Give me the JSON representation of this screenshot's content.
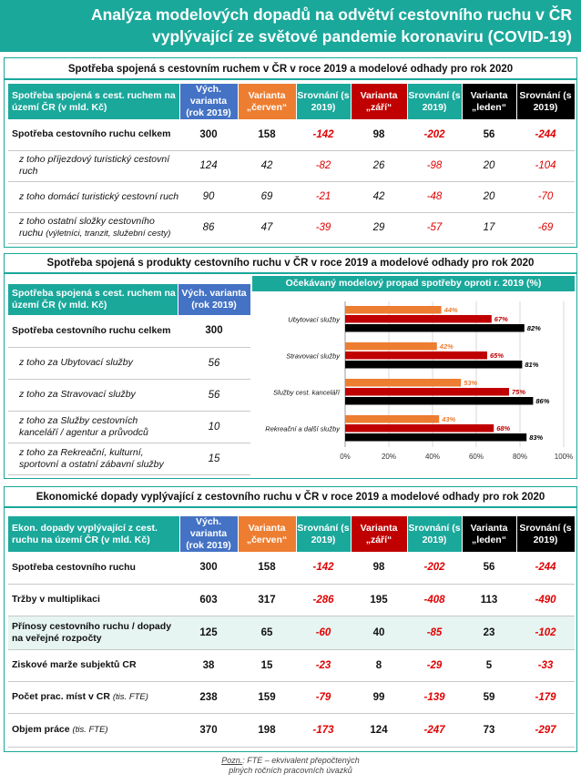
{
  "title": {
    "line1": "Analýza modelových dopadů na odvětví cestovního ruchu v ČR",
    "line2": "vyplývající ze světové pandemie koronaviru (COVID-19)"
  },
  "headers": {
    "col_base": "Vých. varianta (rok 2019)",
    "col_cerven": "Varianta „červen“",
    "col_zari": "Varianta „září“",
    "col_leden": "Varianta „leden“",
    "col_compare": "Srovnání (s 2019)"
  },
  "section1": {
    "title": "Spotřeba spojená s cestovním ruchem v ČR v roce 2019 a modelové odhady pro rok 2020",
    "row_header": "Spotřeba spojená s cest. ruchem na území ČR (v mld. Kč)",
    "rows": [
      {
        "label": "Spotřeba cestovního ruchu celkem",
        "base": "300",
        "cerven": "158",
        "cerven_cmp": "-142",
        "zari": "98",
        "zari_cmp": "-202",
        "leden": "56",
        "leden_cmp": "-244"
      },
      {
        "label": "z toho příjezdový turistický cestovní ruch",
        "base": "124",
        "cerven": "42",
        "cerven_cmp": "-82",
        "zari": "26",
        "zari_cmp": "-98",
        "leden": "20",
        "leden_cmp": "-104"
      },
      {
        "label": "z toho domácí turistický cestovní ruch",
        "base": "90",
        "cerven": "69",
        "cerven_cmp": "-21",
        "zari": "42",
        "zari_cmp": "-48",
        "leden": "20",
        "leden_cmp": "-70"
      },
      {
        "label": "z toho ostatní složky cestovního ruchu",
        "note": "(výletníci, tranzit, služební cesty)",
        "base": "86",
        "cerven": "47",
        "cerven_cmp": "-39",
        "zari": "29",
        "zari_cmp": "-57",
        "leden": "17",
        "leden_cmp": "-69"
      }
    ]
  },
  "section2": {
    "title": "Spotřeba spojená s produkty cestovního ruchu v ČR v roce 2019 a modelové odhady pro rok 2020",
    "row_header": "Spotřeba spojená s cest. ruchem na území ČR (v mld. Kč)",
    "col_base": "Vých. varianta (rok 2019)",
    "rows": [
      {
        "label": "Spotřeba cestovního ruchu celkem",
        "base": "300"
      },
      {
        "label": "z toho za Ubytovací služby",
        "base": "56"
      },
      {
        "label": "z toho za Stravovací služby",
        "base": "56"
      },
      {
        "label": "z toho za Služby cestovních kanceláří / agentur a průvodců",
        "base": "10"
      },
      {
        "label": "z toho za Rekreační, kulturní, sportovní a ostatní zábavní služby",
        "base": "15"
      }
    ]
  },
  "chart_data": {
    "type": "bar",
    "orientation": "horizontal",
    "title": "Očekávaný modelový propad spotřeby oproti r. 2019 (%)",
    "categories": [
      "Ubytovací služby",
      "Stravovací služby",
      "Služby cest. kanceláří",
      "Rekreační a další služby"
    ],
    "series": [
      {
        "name": "Varianta \"červen\"",
        "values": [
          44,
          42,
          53,
          43
        ],
        "color": "#ed7d31",
        "label_color": "#ed7d31"
      },
      {
        "name": "Varianta \"září\"",
        "values": [
          67,
          65,
          75,
          68
        ],
        "color": "#c00000",
        "label_color": "#c00000"
      },
      {
        "name": "Varianta \"leden\"",
        "values": [
          82,
          81,
          86,
          83
        ],
        "color": "#000000",
        "label_color": "#000000"
      }
    ],
    "value_suffix": "%",
    "xlim": [
      0,
      100
    ],
    "xticks": [
      "0%",
      "20%",
      "40%",
      "60%",
      "80%",
      "100%"
    ],
    "grid": true,
    "legend": "bottom"
  },
  "section3": {
    "title": "Ekonomické dopady vyplývající z cestovního ruchu v ČR v roce 2019 a modelové odhady pro rok 2020",
    "row_header": "Ekon. dopady vyplývající z cest. ruchu na území ČR (v mld. Kč)",
    "rows": [
      {
        "label": "Spotřeba cestovního ruchu",
        "base": "300",
        "cerven": "158",
        "cerven_cmp": "-142",
        "zari": "98",
        "zari_cmp": "-202",
        "leden": "56",
        "leden_cmp": "-244"
      },
      {
        "label": "Tržby v multiplikaci",
        "base": "603",
        "cerven": "317",
        "cerven_cmp": "-286",
        "zari": "195",
        "zari_cmp": "-408",
        "leden": "113",
        "leden_cmp": "-490"
      },
      {
        "label": "Přínosy cestovního ruchu / dopady na veřejné rozpočty",
        "base": "125",
        "cerven": "65",
        "cerven_cmp": "-60",
        "zari": "40",
        "zari_cmp": "-85",
        "leden": "23",
        "leden_cmp": "-102"
      },
      {
        "label": "Ziskové marže subjektů CR",
        "base": "38",
        "cerven": "15",
        "cerven_cmp": "-23",
        "zari": "8",
        "zari_cmp": "-29",
        "leden": "5",
        "leden_cmp": "-33"
      },
      {
        "label": "Počet prac. míst v CR",
        "note": "(tis. FTE)",
        "base": "238",
        "cerven": "159",
        "cerven_cmp": "-79",
        "zari": "99",
        "zari_cmp": "-139",
        "leden": "59",
        "leden_cmp": "-179"
      },
      {
        "label": "Objem práce",
        "note": "(tis. FTE)",
        "base": "370",
        "cerven": "198",
        "cerven_cmp": "-173",
        "zari": "124",
        "zari_cmp": "-247",
        "leden": "73",
        "leden_cmp": "-297"
      }
    ]
  },
  "footnote": {
    "prefix": "Pozn.",
    "line1": ": FTE – ekvivalent přepočtených",
    "line2": "plných ročních pracovních úvazků"
  }
}
